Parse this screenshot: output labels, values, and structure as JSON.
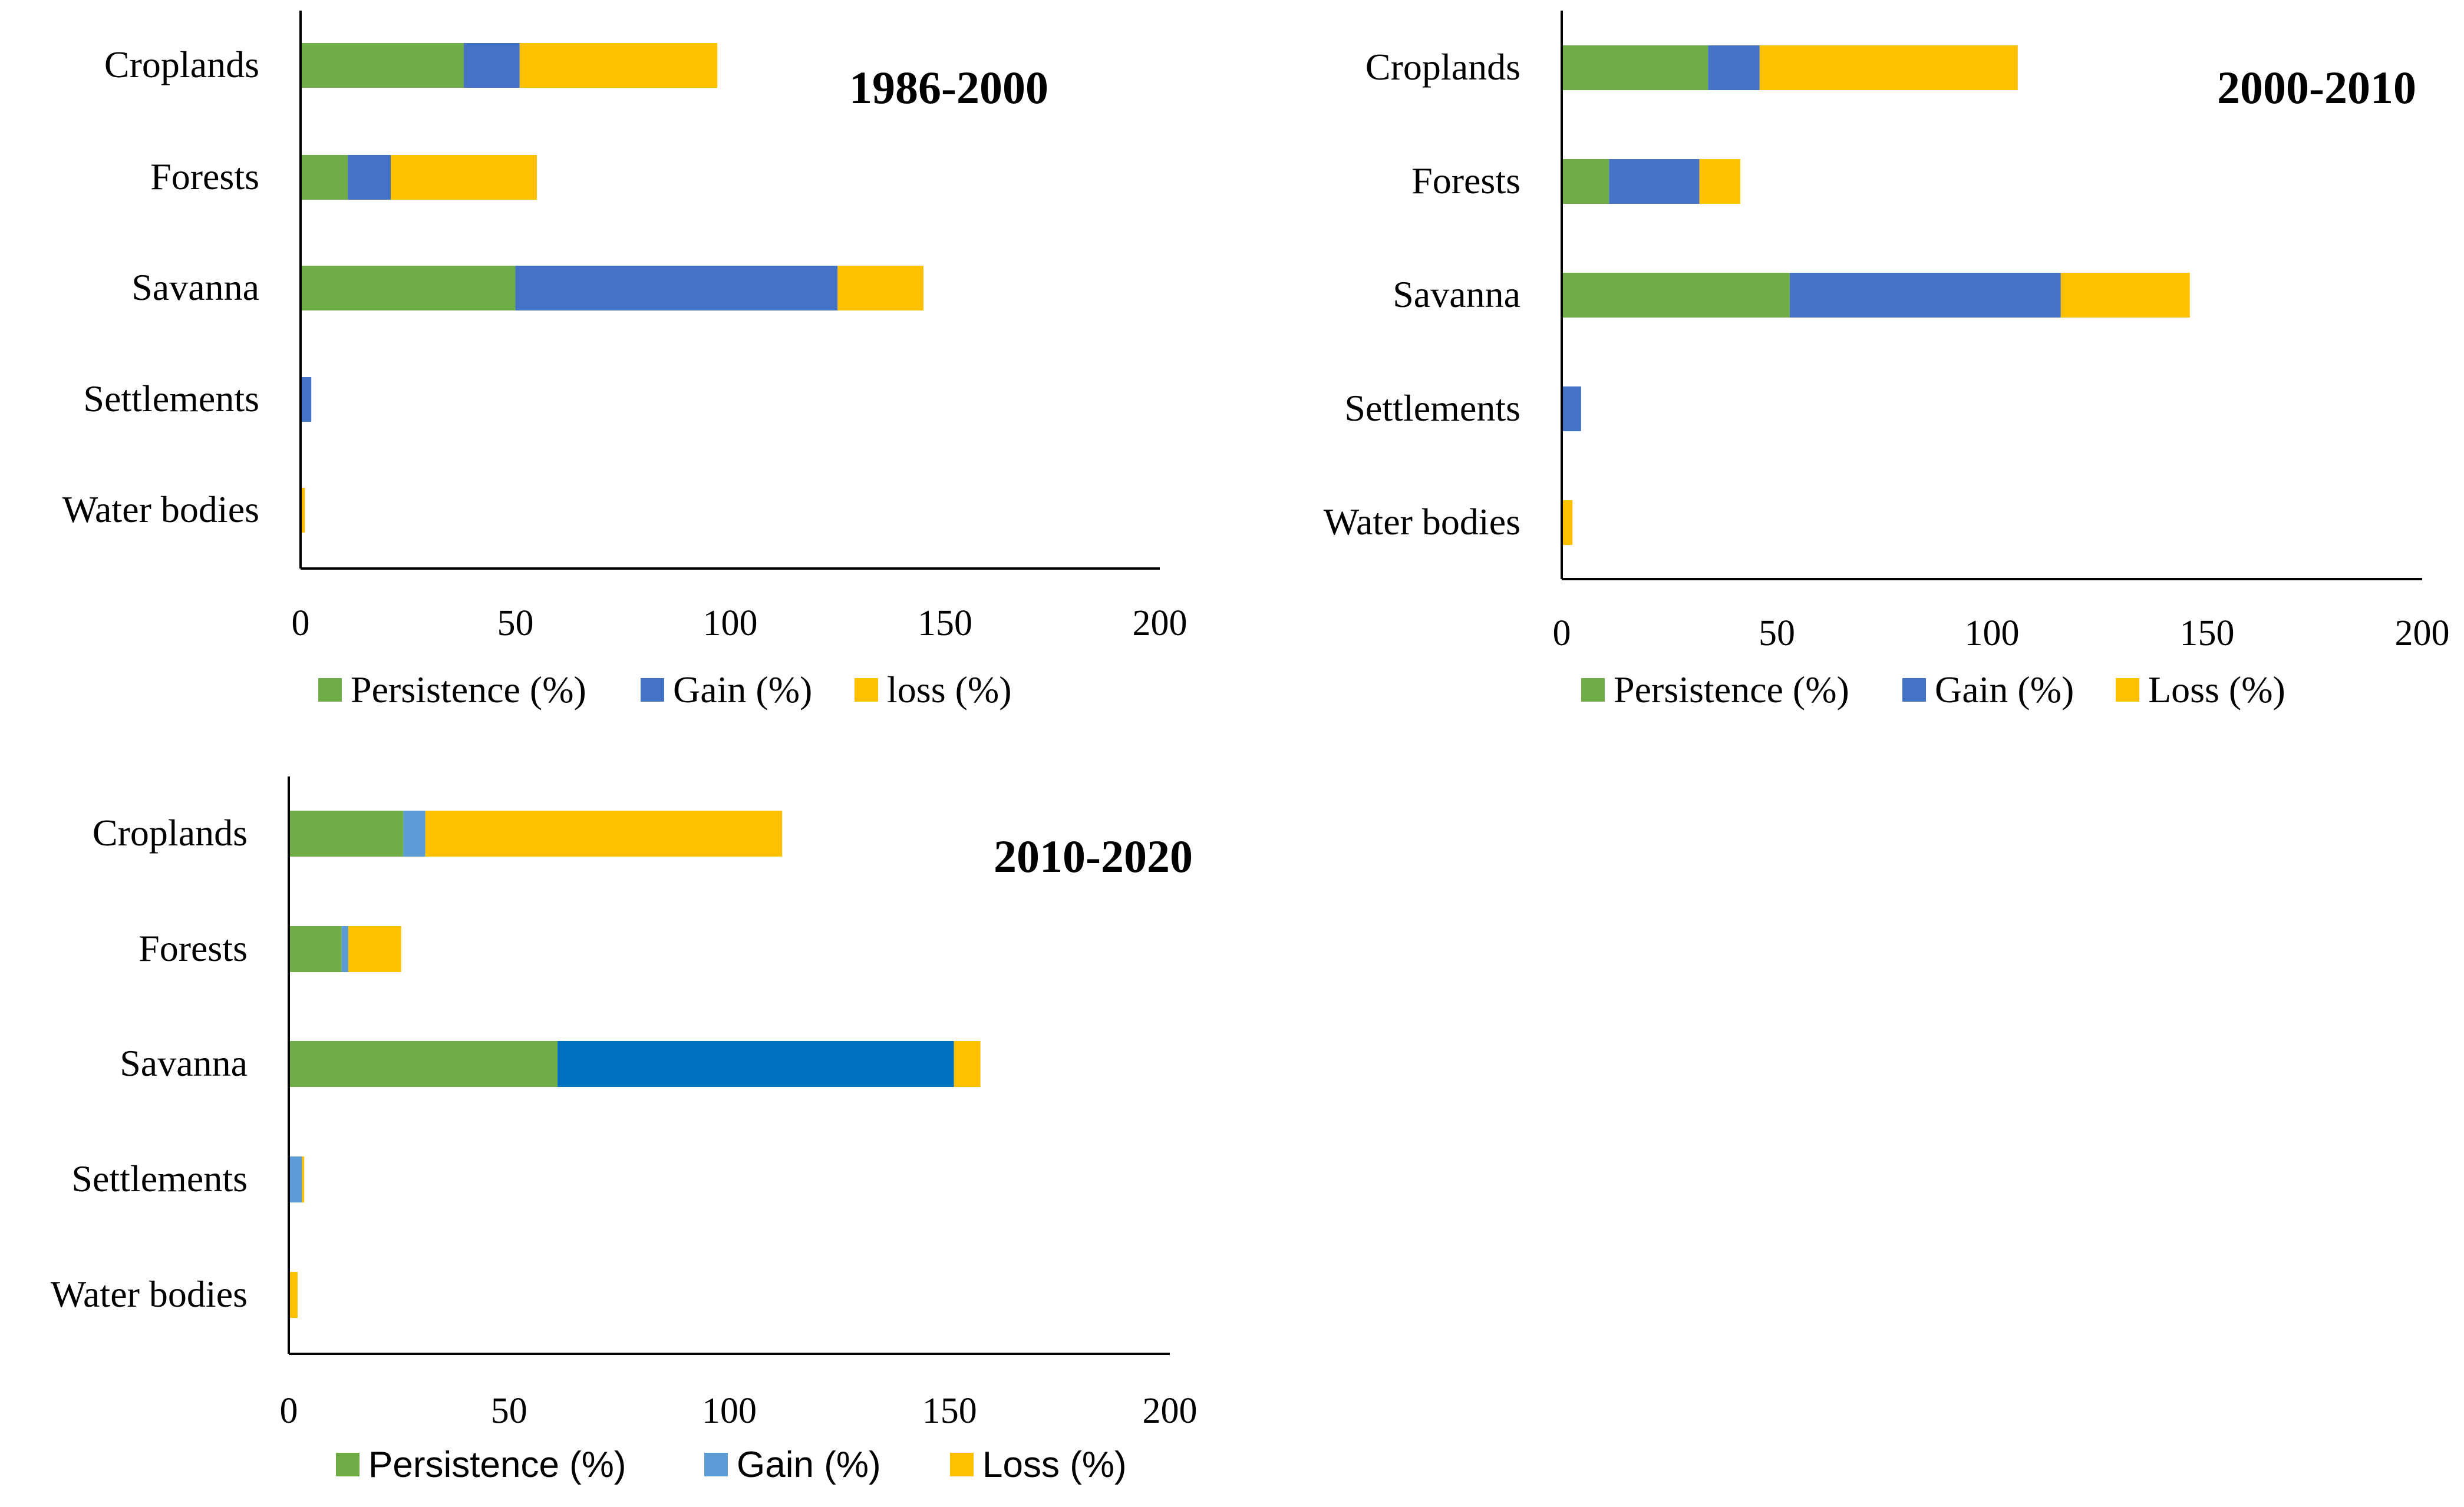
{
  "colors": {
    "persistence": "#70AD47",
    "gain": "#4472C4",
    "gain_light": "#5B9BD5",
    "gain_dark": "#0070C0",
    "loss": "#FFC000"
  },
  "chart_data": [
    {
      "type": "bar",
      "orientation": "horizontal",
      "stacked": true,
      "title": "1986-2000",
      "categories": [
        "Croplands",
        "Forests",
        "Savanna",
        "Settlements",
        "Water bodies"
      ],
      "series": [
        {
          "name": "Persistence (%)",
          "values": [
            38,
            11,
            50,
            0,
            0
          ]
        },
        {
          "name": "Gain (%)",
          "values": [
            13,
            10,
            75,
            2.5,
            0
          ]
        },
        {
          "name": "loss (%)",
          "values": [
            46,
            34,
            20,
            0,
            1
          ]
        }
      ],
      "xlim": [
        0,
        200
      ],
      "xticks": [
        "0",
        "50",
        "100",
        "150",
        "200"
      ]
    },
    {
      "type": "bar",
      "orientation": "horizontal",
      "stacked": true,
      "title": "2000-2010",
      "categories": [
        "Croplands",
        "Forests",
        "Savanna",
        "Settlements",
        "Water bodies"
      ],
      "series": [
        {
          "name": "Persistence (%)",
          "values": [
            34,
            11,
            53,
            0,
            0
          ]
        },
        {
          "name": "Gain (%)",
          "values": [
            12,
            21,
            63,
            4.5,
            0
          ]
        },
        {
          "name": "Loss (%)",
          "values": [
            60,
            9.5,
            30,
            0,
            2.5
          ]
        }
      ],
      "xlim": [
        0,
        200
      ],
      "xticks": [
        "0",
        "50",
        "100",
        "150",
        "200"
      ]
    },
    {
      "type": "bar",
      "orientation": "horizontal",
      "stacked": true,
      "title": "2010-2020",
      "categories": [
        "Croplands",
        "Forests",
        "Savanna",
        "Settlements",
        "Water bodies"
      ],
      "series": [
        {
          "name": "Persistence (%)",
          "values": [
            26,
            12,
            61,
            0,
            0
          ]
        },
        {
          "name": "Gain (%)",
          "values": [
            5,
            1.5,
            90,
            3,
            0
          ]
        },
        {
          "name": "Loss (%)",
          "values": [
            81,
            12,
            6,
            0.5,
            2
          ]
        }
      ],
      "xlim": [
        0,
        200
      ],
      "xticks": [
        "0",
        "50",
        "100",
        "150",
        "200"
      ]
    }
  ]
}
